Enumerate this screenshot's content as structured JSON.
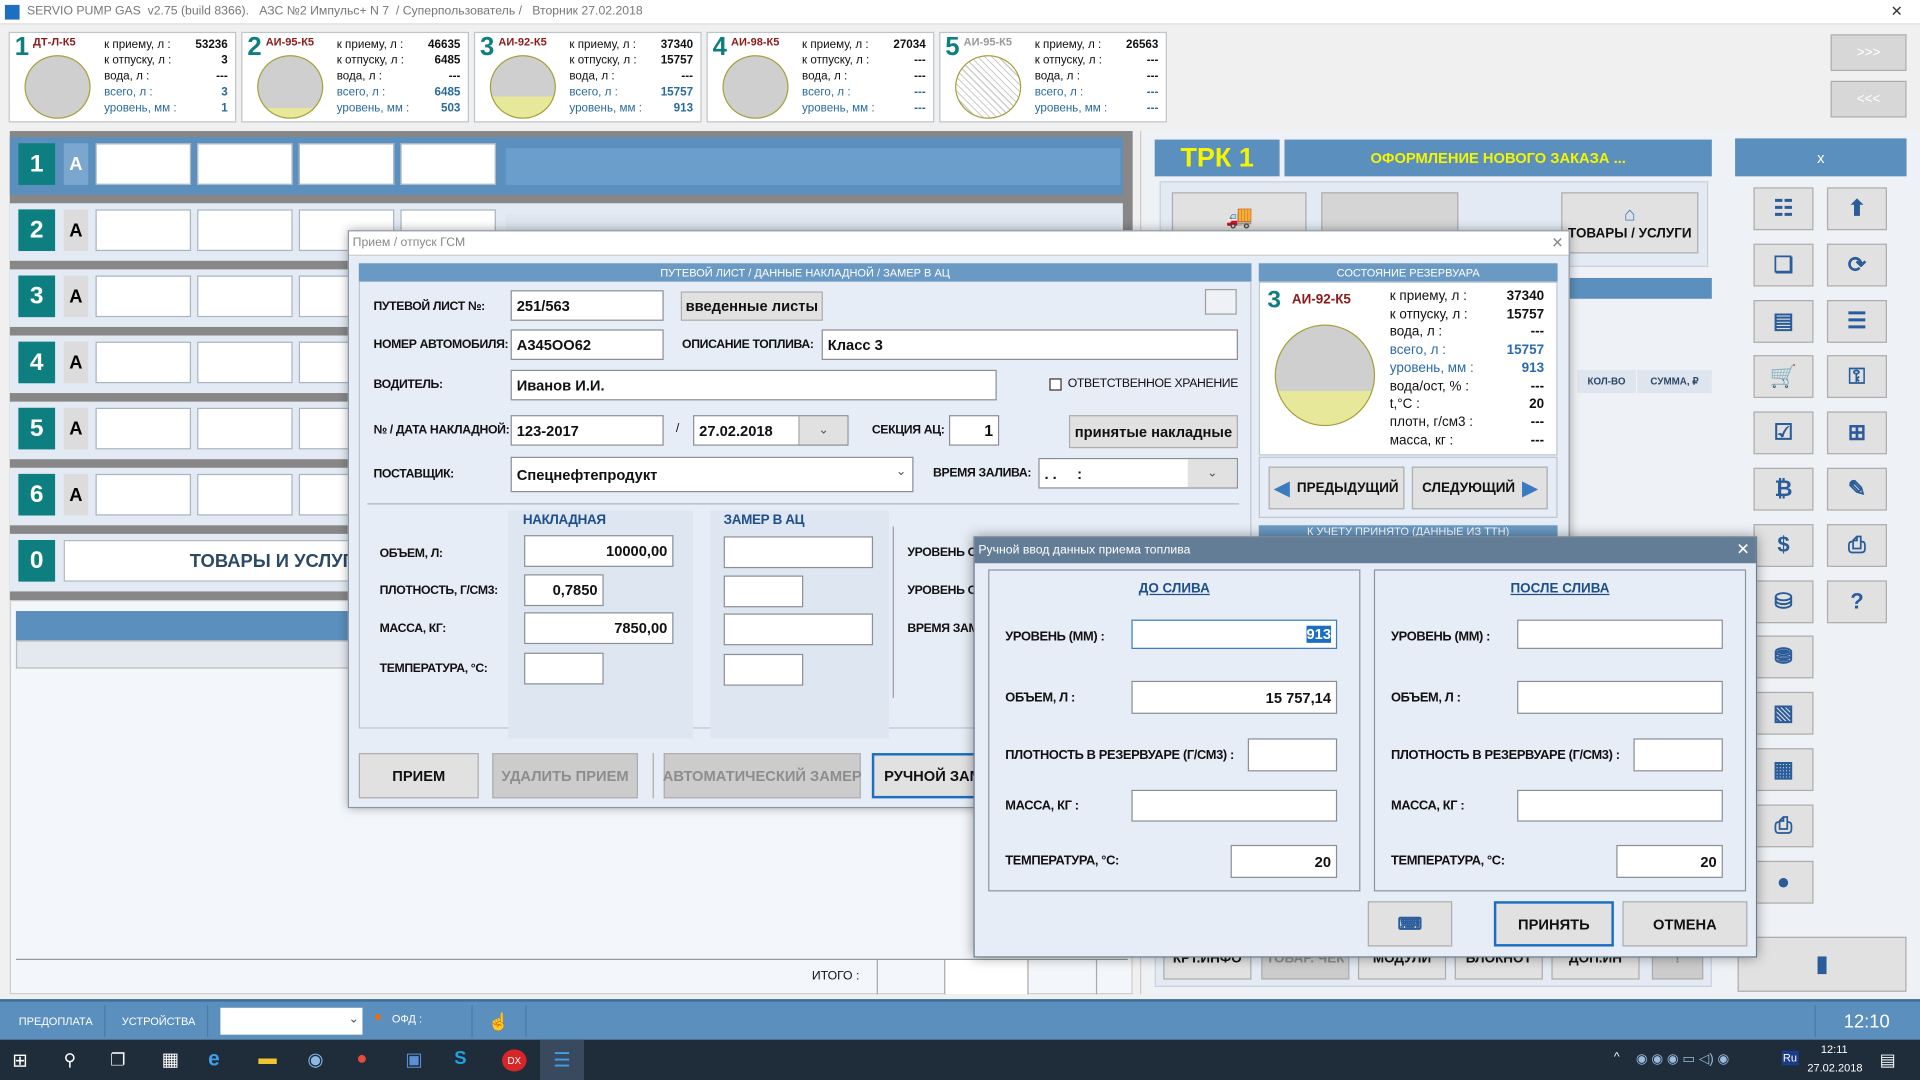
{
  "window": {
    "title": "SERVIO PUMP GAS  v2.75 (build 8366).   АЗС №2 Импульс+ N 7  / Суперпользователь /   Вторник 27.02.2018",
    "close": "✕"
  },
  "colors": {
    "teal": "#0e7f80",
    "tank_name": "#8b1a1a",
    "accent_blue": "#5b8fbd",
    "fuel_yellow": "#e8e89a",
    "tank_gray": "#cfcfcf"
  },
  "tank_labels": {
    "receive": "к приему, л :",
    "release": "к отпуску, л :",
    "water": "вода, л :",
    "total": "всего, л :",
    "level": "уровень, мм :"
  },
  "tanks": [
    {
      "num": "1",
      "name": "ДТ-Л-К5",
      "receive": "53236",
      "release": "3",
      "water": "---",
      "total": "3",
      "level": "1",
      "fill": 0.0,
      "available": true
    },
    {
      "num": "2",
      "name": "АИ-95-К5",
      "receive": "46635",
      "release": "6485",
      "water": "---",
      "total": "6485",
      "level": "503",
      "fill": 0.16,
      "available": true
    },
    {
      "num": "3",
      "name": "АИ-92-К5",
      "receive": "37340",
      "release": "15757",
      "water": "---",
      "total": "15757",
      "level": "913",
      "fill": 0.34,
      "available": true
    },
    {
      "num": "4",
      "name": "АИ-98-К5",
      "receive": "27034",
      "release": "---",
      "water": "---",
      "total": "---",
      "level": "---",
      "fill": 0.0,
      "available": true
    },
    {
      "num": "5",
      "name": "АИ-95-К5",
      "receive": "26563",
      "release": "---",
      "water": "---",
      "total": "---",
      "level": "---",
      "fill": 0.0,
      "available": false
    }
  ],
  "scroll_buttons": {
    "next": ">>>",
    "prev": "<<<"
  },
  "pumps": [
    {
      "num": "1",
      "mode": "А"
    },
    {
      "num": "2",
      "mode": "А"
    },
    {
      "num": "3",
      "mode": "А"
    },
    {
      "num": "4",
      "mode": "А"
    },
    {
      "num": "5",
      "mode": "А"
    },
    {
      "num": "6",
      "mode": "А"
    }
  ],
  "goods_row": {
    "num": "0",
    "label": "ТОВАРЫ И УСЛУГИ"
  },
  "order_table": {
    "total_label": "ИТОГО :"
  },
  "trk": {
    "title": "ТРК 1",
    "order_title": "ОФОРМЛЕНИЕ НОВОГО ЗАКАЗА ...",
    "goods_button": "ТОВАРЫ / УСЛУГИ",
    "col_qty": "КОЛ-ВО",
    "col_sum": "СУММА, ₽",
    "bottom_buttons": [
      "КРТ.ИНФО",
      "ТОВАР. ЧЕК",
      "МОДУЛИ",
      "БЛОКНОТ",
      "ДОП.ИН",
      "!"
    ]
  },
  "sidebar": {
    "close": "x",
    "left_icons": [
      "tree-icon",
      "documents-icon",
      "document-icon",
      "cart-icon",
      "checklist-icon",
      "money-icon",
      "dollar-icon",
      "database-icon",
      "database-add-icon",
      "report-icon",
      "calculator-icon",
      "printer-icon",
      "globe-icon"
    ],
    "right_icons": [
      "upload-icon",
      "refresh-icon",
      "list-icon",
      "key-icon",
      "add-window-icon",
      "edit-icon",
      "print-icon",
      "help-icon"
    ],
    "exit_icon": "door-icon"
  },
  "statusbar": {
    "prepay": "ПРЕДОПЛАТА",
    "devices": "УСТРОЙСТВА",
    "device_value": "",
    "ofd": "ОФД :",
    "time": "12:10"
  },
  "taskbar": {
    "lang": "Ru",
    "time": "12:11",
    "date": "27.02.2018"
  },
  "dlg1": {
    "title": "Прием / отпуск ГСМ",
    "section": "ПУТЕВОЙ ЛИСТ / ДАННЫЕ НАКЛАДНОЙ / ЗАМЕР В АЦ",
    "waybill_label": "ПУТЕВОЙ ЛИСТ №:",
    "waybill": "251/563",
    "entered_sheets": "введенные листы",
    "car_label": "НОМЕР АВТОМОБИЛЯ:",
    "car": "А345ОО62",
    "fuel_desc_label": "ОПИСАНИЕ ТОПЛИВА:",
    "fuel_desc": "Класс 3",
    "driver_label": "ВОДИТЕЛЬ:",
    "driver": "Иванов И.И.",
    "custody_label": "ОТВЕТСТВЕННОЕ ХРАНЕНИЕ",
    "custody": false,
    "invoice_label": "№ / ДАТА НАКЛАДНОЙ:",
    "invoice_no": "123-2017",
    "slash": "/",
    "invoice_date": "27.02.2018",
    "section_label": "СЕКЦИЯ АЦ:",
    "section_no": "1",
    "accepted_invoices": "принятые накладные",
    "supplier_label": "ПОСТАВЩИК:",
    "supplier": "Спецнефтепродукт",
    "fill_time_label": "ВРЕМЯ ЗАЛИВА:",
    "fill_time": ". .     :",
    "invoice_group": "НАКЛАДНАЯ",
    "measure_group": "ЗАМЕР В АЦ",
    "volume_label": "ОБЪЕМ, Л:",
    "density_label": "ПЛОТНОСТЬ, Г/СМ3:",
    "mass_label": "МАССА, КГ:",
    "temp_label": "ТЕМПЕРАТУРА, °С:",
    "volume": "10000,00",
    "density": "0,7850",
    "mass": "7850,00",
    "temp": "",
    "level1_label": "УРОВЕНЬ О",
    "level2_label": "УРОВЕНЬ О",
    "meas_time_label": "ВРЕМЯ ЗАМ",
    "btn_receive": "ПРИЕМ",
    "btn_delete": "УДАЛИТЬ ПРИЕМ",
    "btn_auto": "АВТОМАТИЧЕСКИЙ ЗАМЕР",
    "btn_manual": "РУЧНОЙ ЗАМЕР",
    "tank_state": {
      "header": "СОСТОЯНИЕ РЕЗЕРВУАРА",
      "num": "3",
      "name": "АИ-92-К5",
      "fill": 0.34,
      "rows": [
        {
          "label": "к приему, л :",
          "value": "37340",
          "blue": false
        },
        {
          "label": "к отпуску, л :",
          "value": "15757",
          "blue": false
        },
        {
          "label": "вода, л :",
          "value": "---",
          "blue": false
        },
        {
          "label": "всего, л :",
          "value": "15757",
          "blue": true
        },
        {
          "label": "уровень, мм :",
          "value": "913",
          "blue": true
        },
        {
          "label": "вода/ост, % :",
          "value": "---",
          "blue": false
        },
        {
          "label": "t,°C :",
          "value": "20",
          "blue": false
        },
        {
          "label": "плотн, г/см3 :",
          "value": "---",
          "blue": false
        },
        {
          "label": "масса, кг :",
          "value": "---",
          "blue": false
        }
      ]
    },
    "prev": "ПРЕДЫДУЩИЙ",
    "next": "СЛЕДУЮЩИЙ",
    "accepted_header": "К УЧЕТУ ПРИНЯТО (ДАННЫЕ ИЗ ТТН)"
  },
  "dlg2": {
    "title": "Ручной ввод данных приема топлива",
    "before": {
      "title": "ДО СЛИВА",
      "level": "913",
      "volume": "15 757,14",
      "density": "",
      "mass": "",
      "temp": "20"
    },
    "after": {
      "title": "ПОСЛЕ СЛИВА",
      "level": "",
      "volume": "",
      "density": "",
      "mass": "",
      "temp": "20"
    },
    "level_label": "УРОВЕНЬ (ММ) :",
    "volume_label": "ОБЪЕМ, Л :",
    "density_label": "ПЛОТНОСТЬ В РЕЗЕРВУАРЕ (Г/СМ3) :",
    "mass_label": "МАССА, КГ :",
    "temp_label": "ТЕМПЕРАТУРА,  °С:",
    "accept": "ПРИНЯТЬ",
    "cancel": "ОТМЕНА"
  }
}
